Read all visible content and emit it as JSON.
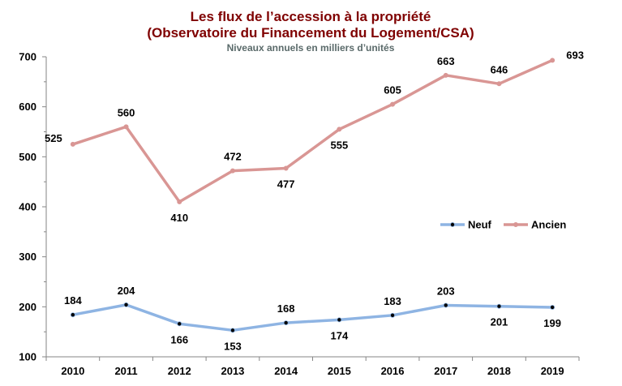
{
  "chart_data": {
    "type": "line",
    "title": "Les flux de l’accession à la propriété",
    "subtitle": "(Observatoire du Financement du Logement/CSA)",
    "note": "Niveaux annuels en milliers d’unités",
    "x": [
      "2010",
      "2011",
      "2012",
      "2013",
      "2014",
      "2015",
      "2016",
      "2017",
      "2018",
      "2019"
    ],
    "ylim": [
      100,
      700
    ],
    "yticks": [
      "100",
      "200",
      "300",
      "400",
      "500",
      "600",
      "700"
    ],
    "grid": false,
    "legend_position": "right",
    "series": [
      {
        "name": "Neuf",
        "color": "#8eb4e3",
        "marker_color": "#000000",
        "values": [
          184,
          204,
          166,
          153,
          168,
          174,
          183,
          203,
          201,
          199
        ]
      },
      {
        "name": "Ancien",
        "color": "#d99694",
        "marker_color": "#d99694",
        "values": [
          525,
          560,
          410,
          472,
          477,
          555,
          605,
          663,
          646,
          693
        ]
      }
    ],
    "colors": {
      "title": "#7f0000",
      "note": "#5a6a6a"
    }
  }
}
